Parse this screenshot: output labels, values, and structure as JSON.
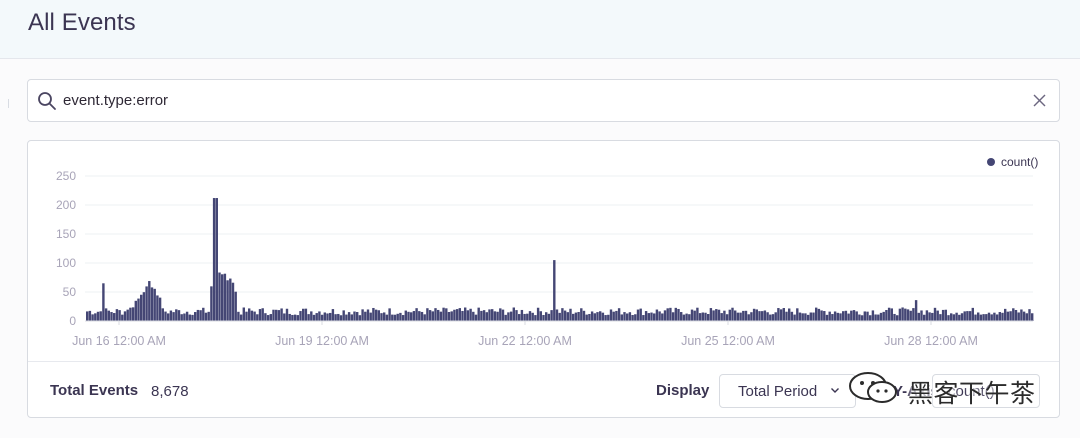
{
  "header": {
    "title": "All Events"
  },
  "search": {
    "query": "event.type:error"
  },
  "chart_data": {
    "type": "bar",
    "legend": [
      "count()"
    ],
    "legend_position": "top-right",
    "y_ticks": [
      "250",
      "200",
      "150",
      "100",
      "50",
      "0"
    ],
    "ylim": [
      0,
      250
    ],
    "x_ticks": [
      "Jun 16 12:00 AM",
      "Jun 19 12:00 AM",
      "Jun 22 12:00 AM",
      "Jun 25 12:00 AM",
      "Jun 28 12:00 AM"
    ],
    "grid": true,
    "series": [
      {
        "name": "count()",
        "color": "#444674",
        "baseline": 18,
        "peaks": [
          {
            "at": "Jun 15 ~8:00 PM",
            "value": 65
          },
          {
            "at": "Jun 16 ~8:00 AM",
            "value": 40
          },
          {
            "at": "Jun 16 ~7:00 PM",
            "value": 78
          },
          {
            "at": "Jun 17 ~1:00 PM",
            "value": 212
          },
          {
            "at": "Jun 17 ~3:00 PM",
            "value": 90
          },
          {
            "at": "Jun 22 ~12:00 AM",
            "value": 105
          },
          {
            "at": "Jun 28 ~12:00 AM",
            "value": 38
          }
        ]
      }
    ]
  },
  "footer": {
    "total_label": "Total Events",
    "total_value": "8,678",
    "display_label": "Display",
    "display_value": "Total Period",
    "yaxis_label": "Y-Axis",
    "yaxis_value": "count()"
  },
  "watermark": {
    "text": "黑客下午茶"
  },
  "colors": {
    "series": "#444674",
    "grid": "#eef0f3",
    "tick": "#a8a4b8",
    "header_bg": "#f3f9fb"
  }
}
